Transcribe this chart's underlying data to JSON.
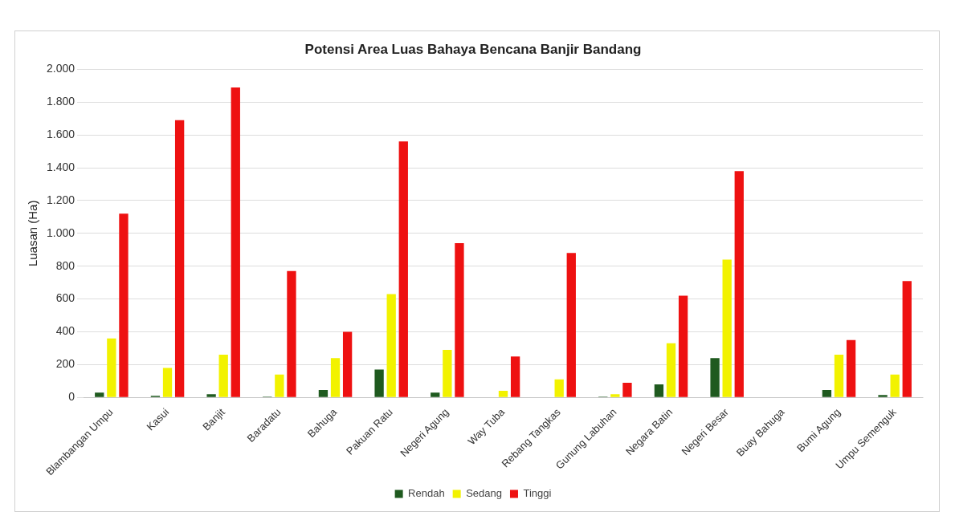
{
  "chart_data": {
    "type": "bar",
    "title": "Potensi Area Luas Bahaya Bencana Banjir Bandang",
    "ylabel": "Luasan (Ha)",
    "categories": [
      "Blambangan Umpu",
      "Kasui",
      "Banjit",
      "Baradatu",
      "Bahuga",
      "Pakuan Ratu",
      "Negeri Agung",
      "Way Tuba",
      "Rebang Tangkas",
      "Gunung Labuhan",
      "Negara Batin",
      "Negeri Besar",
      "Buay Bahuga",
      "Bumi Agung",
      "Umpu Semenguk"
    ],
    "series": [
      {
        "name": "Rendah",
        "color": "#1f5a1f",
        "values": [
          30,
          10,
          20,
          5,
          45,
          170,
          30,
          0,
          0,
          5,
          80,
          240,
          0,
          45,
          15
        ]
      },
      {
        "name": "Sedang",
        "color": "#f2f200",
        "values": [
          360,
          180,
          260,
          140,
          240,
          630,
          290,
          40,
          110,
          20,
          330,
          840,
          0,
          260,
          140
        ]
      },
      {
        "name": "Tinggi",
        "color": "#ee1111",
        "values": [
          1120,
          1690,
          1890,
          770,
          400,
          1560,
          940,
          250,
          880,
          90,
          620,
          1380,
          0,
          350,
          710
        ]
      }
    ],
    "ylim": [
      0,
      2000
    ],
    "yticks": [
      0,
      200,
      400,
      600,
      800,
      {
        "value": 1000,
        "label": "1.000"
      },
      {
        "value": 1200,
        "label": "1.200"
      },
      {
        "value": 1400,
        "label": "1.400"
      },
      {
        "value": 1600,
        "label": "1.600"
      },
      {
        "value": 1800,
        "label": "1.800"
      },
      {
        "value": 2000,
        "label": "2.000"
      }
    ],
    "grid": "y",
    "legend": "bottom"
  }
}
